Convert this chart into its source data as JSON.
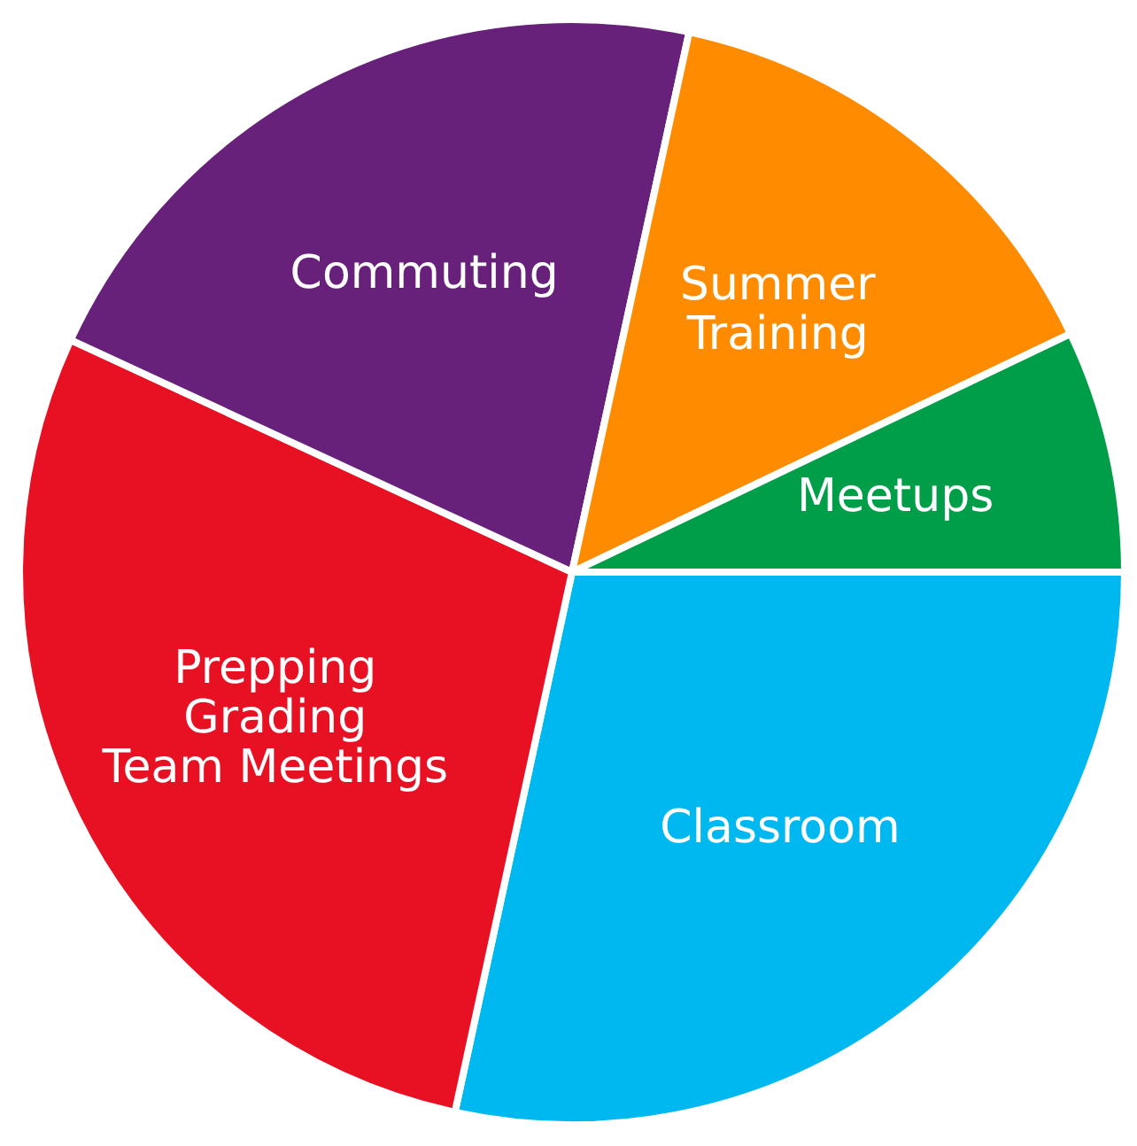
{
  "chart_data": {
    "type": "pie",
    "categories": [
      "Classroom",
      "Prepping\nGrading\nTeam Meetings",
      "Commuting",
      "Summer\nTraining",
      "Meetups"
    ],
    "values": [
      28.4,
      28.5,
      21.5,
      14.5,
      7.1
    ],
    "colors": [
      "#00b8f0",
      "#e81123",
      "#68217a",
      "#ff8c00",
      "#009e49"
    ]
  }
}
